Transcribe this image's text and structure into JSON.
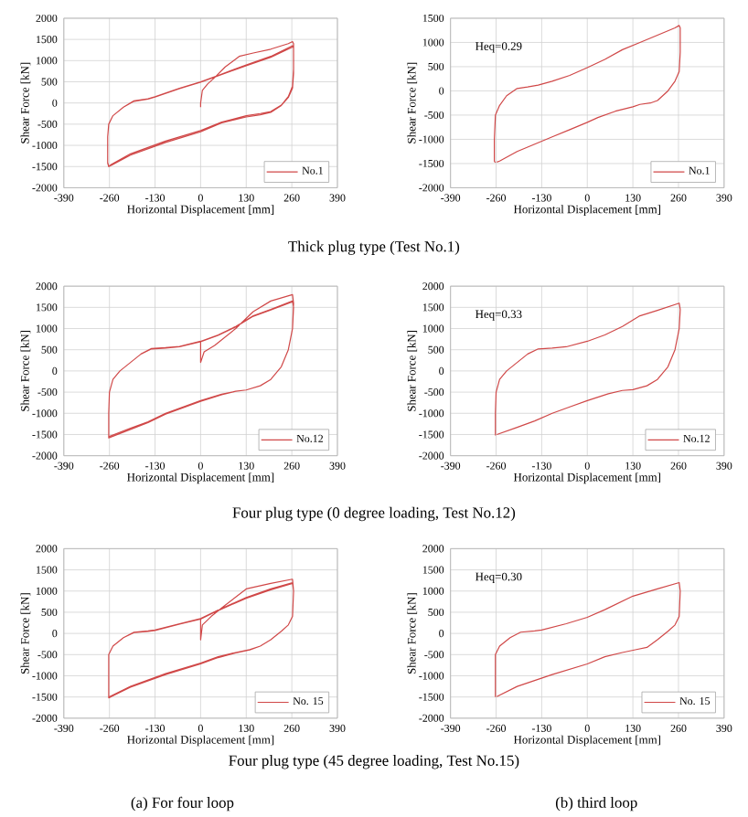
{
  "chart_data": [
    {
      "type": "line",
      "xlabel": "Horizontal Displacement [mm]",
      "ylabel": "Shear Force [kN]",
      "xlim": [
        -390,
        390
      ],
      "ylim": [
        -2000,
        2000
      ],
      "xticks": [
        -390,
        -260,
        -130,
        0,
        130,
        260,
        390
      ],
      "yticks": [
        -2000,
        -1500,
        -1000,
        -500,
        0,
        500,
        1000,
        1500,
        2000
      ],
      "grid": true,
      "legend": "bottom right",
      "annotations": [
        "Thick plug type (Test No.1)"
      ],
      "series": [
        {
          "name": "No.1",
          "color": "#d04848",
          "x": [
            0,
            0,
            5,
            20,
            40,
            70,
            110,
            150,
            200,
            250,
            262,
            265,
            265,
            262,
            250,
            230,
            200,
            170,
            130,
            60,
            0,
            -100,
            -200,
            -255,
            -262,
            -265,
            -265,
            -262,
            -250,
            -220,
            -190,
            -150,
            -130,
            -60,
            0,
            50,
            130,
            200,
            262,
            265,
            265,
            262,
            250,
            230,
            200,
            170,
            130,
            60,
            0,
            -100,
            -200,
            -255,
            -262,
            -265,
            -265,
            -262,
            -250,
            -220,
            -190,
            -150,
            -130,
            -60,
            0,
            50,
            130,
            200,
            262
          ],
          "values": [
            -100,
            0,
            300,
            450,
            600,
            850,
            1100,
            1180,
            1270,
            1400,
            1450,
            1400,
            800,
            400,
            150,
            -50,
            -200,
            -250,
            -300,
            -450,
            -650,
            -900,
            -1200,
            -1450,
            -1500,
            -1400,
            -800,
            -500,
            -300,
            -100,
            50,
            100,
            150,
            350,
            500,
            650,
            900,
            1100,
            1350,
            1300,
            700,
            350,
            130,
            -60,
            -220,
            -280,
            -330,
            -470,
            -680,
            -930,
            -1230,
            -1470,
            -1500,
            -1420,
            -800,
            -500,
            -300,
            -100,
            40,
            90,
            140,
            340,
            490,
            640,
            880,
            1080,
            1320
          ]
        }
      ]
    },
    {
      "type": "line",
      "xlabel": "Horizontal Displacement [mm]",
      "ylabel": "Shear Force [kN]",
      "xlim": [
        -390,
        390
      ],
      "ylim": [
        -2000,
        1500
      ],
      "xticks": [
        -390,
        -260,
        -130,
        0,
        130,
        260,
        390
      ],
      "yticks": [
        -2000,
        -1500,
        -1000,
        -500,
        0,
        500,
        1000,
        1500
      ],
      "grid": true,
      "legend": "bottom right",
      "annotations": [
        "Heq=0.29"
      ],
      "series": [
        {
          "name": "No.1",
          "color": "#d04848",
          "x": [
            -262,
            -265,
            -265,
            -262,
            -250,
            -230,
            -200,
            -170,
            -140,
            -100,
            -50,
            0,
            50,
            100,
            150,
            200,
            250,
            262,
            265,
            265,
            262,
            250,
            230,
            200,
            180,
            150,
            130,
            80,
            30,
            0,
            -50,
            -100,
            -150,
            -200,
            -250,
            -258
          ],
          "values": [
            -1480,
            -1450,
            -1000,
            -500,
            -300,
            -100,
            50,
            80,
            120,
            200,
            320,
            480,
            650,
            850,
            1000,
            1150,
            1300,
            1350,
            1300,
            800,
            400,
            200,
            0,
            -200,
            -250,
            -280,
            -330,
            -420,
            -550,
            -650,
            -800,
            -950,
            -1100,
            -1250,
            -1450,
            -1470
          ]
        }
      ]
    },
    {
      "type": "line",
      "xlabel": "Horizontal Displacement [mm]",
      "ylabel": "Shear Force [kN]",
      "xlim": [
        -390,
        390
      ],
      "ylim": [
        -2000,
        2000
      ],
      "xticks": [
        -390,
        -260,
        -130,
        0,
        130,
        260,
        390
      ],
      "yticks": [
        -2000,
        -1500,
        -1000,
        -500,
        0,
        500,
        1000,
        1500,
        2000
      ],
      "grid": true,
      "legend": "bottom right",
      "annotations": [
        "Four  plug type (0 degree loading, Test No.12)"
      ],
      "series": [
        {
          "name": "No.12",
          "color": "#d04848",
          "x": [
            0,
            0,
            10,
            40,
            100,
            150,
            200,
            262,
            265,
            262,
            250,
            230,
            200,
            170,
            130,
            100,
            60,
            0,
            -50,
            -100,
            -150,
            -200,
            -262,
            -262,
            -260,
            -250,
            -230,
            -200,
            -170,
            -140,
            -100,
            -60,
            0,
            50,
            100,
            150,
            200,
            262,
            265,
            262,
            250,
            230,
            200,
            170,
            130,
            100,
            60,
            0,
            -50,
            -100,
            -150,
            -200,
            -262,
            -262,
            -260,
            -250,
            -230,
            -200,
            -170,
            -140,
            -100,
            -60,
            0,
            50,
            100,
            150,
            200,
            262
          ],
          "values": [
            700,
            200,
            450,
            600,
            1000,
            1400,
            1650,
            1800,
            1600,
            1000,
            500,
            100,
            -200,
            -350,
            -450,
            -480,
            -550,
            -700,
            -850,
            -1000,
            -1200,
            -1350,
            -1550,
            -1000,
            -500,
            -200,
            0,
            200,
            400,
            530,
            550,
            580,
            700,
            850,
            1050,
            1300,
            1450,
            1650,
            1500,
            1000,
            500,
            100,
            -200,
            -350,
            -450,
            -480,
            -560,
            -720,
            -870,
            -1020,
            -1220,
            -1380,
            -1580,
            -1000,
            -500,
            -200,
            0,
            200,
            400,
            520,
            540,
            570,
            690,
            840,
            1040,
            1290,
            1440,
            1630
          ]
        }
      ]
    },
    {
      "type": "line",
      "xlabel": "Horizontal Displacement [mm]",
      "ylabel": "Shear Force [kN]",
      "xlim": [
        -390,
        390
      ],
      "ylim": [
        -2000,
        2000
      ],
      "xticks": [
        -390,
        -260,
        -130,
        0,
        130,
        260,
        390
      ],
      "yticks": [
        -2000,
        -1500,
        -1000,
        -500,
        0,
        500,
        1000,
        1500,
        2000
      ],
      "grid": true,
      "legend": "bottom right",
      "annotations": [
        "Heq=0.33"
      ],
      "series": [
        {
          "name": "No.12",
          "color": "#d04848",
          "x": [
            -262,
            -262,
            -260,
            -250,
            -230,
            -200,
            -170,
            -140,
            -100,
            -60,
            0,
            50,
            100,
            150,
            200,
            262,
            265,
            262,
            250,
            230,
            200,
            170,
            130,
            100,
            60,
            0,
            -50,
            -100,
            -150,
            -200,
            -258
          ],
          "values": [
            -1520,
            -1000,
            -500,
            -200,
            0,
            200,
            400,
            520,
            540,
            570,
            700,
            850,
            1050,
            1300,
            1430,
            1600,
            1450,
            1000,
            500,
            100,
            -200,
            -350,
            -440,
            -460,
            -540,
            -700,
            -850,
            -1000,
            -1180,
            -1330,
            -1500
          ]
        }
      ]
    },
    {
      "type": "line",
      "xlabel": "Horizontal Displacement [mm]",
      "ylabel": "Shear Force [kN]",
      "xlim": [
        -390,
        390
      ],
      "ylim": [
        -2000,
        2000
      ],
      "xticks": [
        -390,
        -260,
        -130,
        0,
        130,
        260,
        390
      ],
      "yticks": [
        -2000,
        -1500,
        -1000,
        -500,
        0,
        500,
        1000,
        1500,
        2000
      ],
      "grid": true,
      "legend": "bottom right",
      "annotations": [
        "Four  plug type (45 degree loading, Test No.15)",
        "(a) For four loop"
      ],
      "series": [
        {
          "name": "No. 15",
          "color": "#d04848",
          "x": [
            0,
            0,
            5,
            30,
            60,
            130,
            200,
            262,
            265,
            262,
            250,
            230,
            200,
            170,
            140,
            100,
            50,
            0,
            -100,
            -200,
            -262,
            -262,
            -250,
            -220,
            -190,
            -150,
            -130,
            -60,
            0,
            50,
            130,
            200,
            262,
            265,
            262,
            250,
            230,
            200,
            170,
            140,
            100,
            50,
            0,
            -100,
            -200,
            -262,
            -262,
            -250,
            -220,
            -190,
            -150,
            -130,
            -60,
            0,
            50,
            130,
            200,
            262
          ],
          "values": [
            350,
            -150,
            200,
            400,
            600,
            1050,
            1180,
            1280,
            1000,
            400,
            200,
            50,
            -150,
            -300,
            -380,
            -450,
            -550,
            -700,
            -950,
            -1250,
            -1500,
            -500,
            -300,
            -100,
            30,
            60,
            80,
            230,
            350,
            550,
            850,
            1050,
            1200,
            1000,
            400,
            200,
            50,
            -150,
            -300,
            -390,
            -460,
            -570,
            -720,
            -970,
            -1270,
            -1520,
            -500,
            -300,
            -100,
            20,
            50,
            70,
            220,
            340,
            540,
            830,
            1030,
            1180
          ]
        }
      ]
    },
    {
      "type": "line",
      "xlabel": "Horizontal Displacement [mm]",
      "ylabel": "Shear Force [kN]",
      "xlim": [
        -390,
        390
      ],
      "ylim": [
        -2000,
        2000
      ],
      "xticks": [
        -390,
        -260,
        -130,
        0,
        130,
        260,
        390
      ],
      "yticks": [
        -2000,
        -1500,
        -1000,
        -500,
        0,
        500,
        1000,
        1500,
        2000
      ],
      "grid": true,
      "legend": "bottom right",
      "annotations": [
        "Heq=0.30",
        "(b) third loop"
      ],
      "series": [
        {
          "name": "No. 15",
          "color": "#d04848",
          "x": [
            -262,
            -262,
            -250,
            -220,
            -190,
            -150,
            -130,
            -60,
            0,
            50,
            130,
            200,
            262,
            265,
            262,
            250,
            230,
            200,
            170,
            140,
            100,
            50,
            0,
            -100,
            -200,
            -258
          ],
          "values": [
            -1500,
            -500,
            -300,
            -100,
            30,
            60,
            80,
            230,
            380,
            560,
            880,
            1050,
            1200,
            1000,
            400,
            200,
            50,
            -150,
            -330,
            -380,
            -450,
            -550,
            -720,
            -970,
            -1250,
            -1490
          ]
        }
      ]
    }
  ]
}
